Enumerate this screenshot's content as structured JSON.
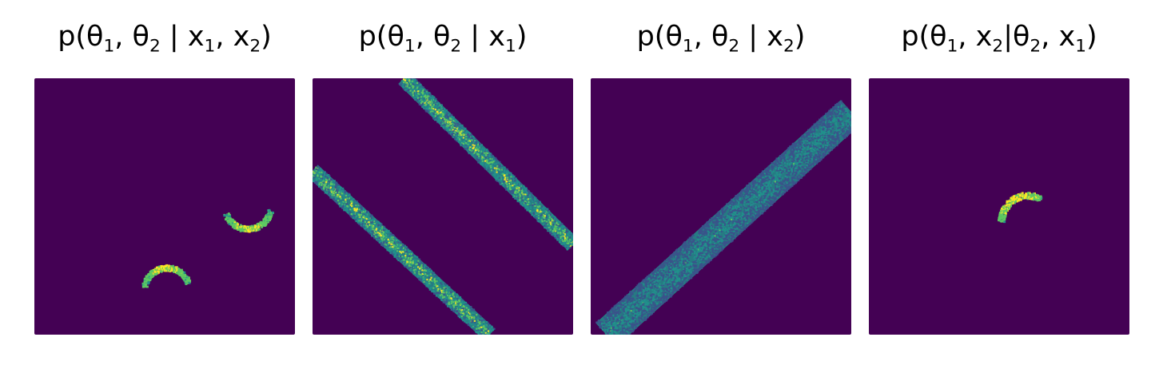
{
  "colors": {
    "background": "#440154",
    "low": "#3b528b",
    "mid": "#21918c",
    "high": "#5ec962",
    "peak": "#fde725"
  },
  "chart_data": [
    {
      "type": "heatmap",
      "title": "p(θ1, θ2 | x1, x2)",
      "title_parts": [
        [
          "p(θ",
          ""
        ],
        [
          "1",
          ""
        ],
        [
          ", θ",
          ""
        ],
        [
          "2",
          ""
        ],
        [
          " | x",
          ""
        ],
        [
          "1",
          ""
        ],
        [
          ", x",
          ""
        ],
        [
          "2",
          ""
        ],
        [
          ")",
          ""
        ]
      ],
      "features": [
        {
          "shape": "arc",
          "cx": 0.82,
          "cy": 0.5,
          "r": 0.088,
          "start_deg": 200,
          "end_deg": 350,
          "spread": 0.011,
          "intensity": 0.9
        },
        {
          "shape": "arc",
          "cx": 0.51,
          "cy": 0.17,
          "r": 0.088,
          "start_deg": 20,
          "end_deg": 170,
          "spread": 0.011,
          "intensity": 0.9
        }
      ]
    },
    {
      "type": "heatmap",
      "title": "p(θ1, θ2 | x1)",
      "features": [
        {
          "shape": "band",
          "x1": 0.35,
          "y1": 1.0,
          "x2": 1.0,
          "y2": 0.35,
          "width": 0.06,
          "intensity": 0.85
        },
        {
          "shape": "band",
          "x1": 0.0,
          "y1": 0.64,
          "x2": 0.68,
          "y2": 0.0,
          "width": 0.06,
          "intensity": 0.85
        }
      ]
    },
    {
      "type": "heatmap",
      "title": "p(θ1, θ2 | x2)",
      "features": [
        {
          "shape": "band",
          "x1": 0.06,
          "y1": 0.0,
          "x2": 1.0,
          "y2": 0.87,
          "width": 0.12,
          "intensity": 0.5
        }
      ]
    },
    {
      "type": "heatmap",
      "title": "p(θ1, x2|θ2, x1)",
      "features": [
        {
          "shape": "arc",
          "cx": 0.61,
          "cy": 0.44,
          "r": 0.1,
          "start_deg": 30,
          "end_deg": 150,
          "spread": 0.012,
          "intensity": 1.0,
          "tilt_deg": -30
        }
      ]
    }
  ],
  "titles_html_safe": [
    [
      "p(θ",
      {
        "sub": "1"
      },
      ", θ",
      {
        "sub": "2"
      },
      " | x",
      {
        "sub": "1"
      },
      ", x",
      {
        "sub": "2"
      },
      ")"
    ],
    [
      "p(θ",
      {
        "sub": "1"
      },
      ", θ",
      {
        "sub": "2"
      },
      " | x",
      {
        "sub": "1"
      },
      ")"
    ],
    [
      "p(θ",
      {
        "sub": "1"
      },
      ", θ",
      {
        "sub": "2"
      },
      " | x",
      {
        "sub": "2"
      },
      ")"
    ],
    [
      "p(θ",
      {
        "sub": "1"
      },
      ", x",
      {
        "sub": "2"
      },
      "|θ",
      {
        "sub": "2"
      },
      ", x",
      {
        "sub": "1"
      },
      ")"
    ]
  ]
}
